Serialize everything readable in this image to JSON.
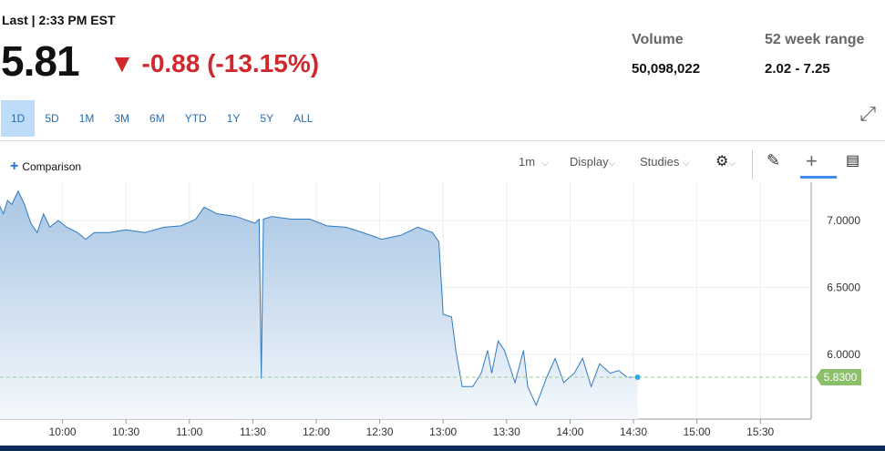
{
  "header": {
    "last_label": "Last | 2:33 PM EST",
    "price": "5.81",
    "change": "-0.88 (-13.15%)",
    "direction_icon": "triangle-down-icon"
  },
  "stats": {
    "volume_label": "Volume",
    "volume": "50,098,022",
    "range_label": "52 week range",
    "range": "2.02 - 7.25"
  },
  "ranges": [
    "1D",
    "5D",
    "1M",
    "3M",
    "6M",
    "YTD",
    "1Y",
    "5Y",
    "ALL"
  ],
  "active_range": "1D",
  "toolbar": {
    "comparison": "Comparison",
    "interval": "1m",
    "display": "Display",
    "studies": "Studies"
  },
  "colors": {
    "line": "#2f7bc0",
    "fill": "#a9c6e4",
    "down": "#d0282c",
    "last_badge": "#8bbf6a"
  },
  "chart_data": {
    "type": "area",
    "x_ticks": [
      "10:00",
      "10:30",
      "11:00",
      "11:30",
      "12:00",
      "12:30",
      "13:00",
      "13:30",
      "14:00",
      "14:30",
      "15:00",
      "15:30"
    ],
    "y_ticks": [
      "6.0000",
      "6.5000",
      "7.0000"
    ],
    "xlim": [
      "09:30",
      "16:00"
    ],
    "ylim": [
      5.45,
      7.33
    ],
    "grid": true,
    "last_value_label": "5.8300",
    "last_value": 5.83,
    "points": [
      [
        "09:30",
        7.12
      ],
      [
        "09:32",
        7.05
      ],
      [
        "09:34",
        7.15
      ],
      [
        "09:36",
        7.12
      ],
      [
        "09:39",
        7.22
      ],
      [
        "09:42",
        7.12
      ],
      [
        "09:45",
        6.98
      ],
      [
        "09:48",
        6.91
      ],
      [
        "09:51",
        7.05
      ],
      [
        "09:54",
        6.95
      ],
      [
        "09:58",
        7.0
      ],
      [
        "10:02",
        6.95
      ],
      [
        "10:07",
        6.91
      ],
      [
        "10:11",
        6.86
      ],
      [
        "10:15",
        6.91
      ],
      [
        "10:22",
        6.91
      ],
      [
        "10:30",
        6.93
      ],
      [
        "10:39",
        6.91
      ],
      [
        "10:48",
        6.95
      ],
      [
        "10:56",
        6.96
      ],
      [
        "11:03",
        7.01
      ],
      [
        "11:07",
        7.1
      ],
      [
        "11:13",
        7.05
      ],
      [
        "11:22",
        7.03
      ],
      [
        "11:31",
        6.98
      ],
      [
        "11:33",
        7.01
      ],
      [
        "11:34",
        5.82
      ],
      [
        "11:35",
        7.01
      ],
      [
        "11:39",
        7.03
      ],
      [
        "11:48",
        7.01
      ],
      [
        "11:57",
        7.01
      ],
      [
        "12:05",
        6.96
      ],
      [
        "12:14",
        6.95
      ],
      [
        "12:22",
        6.91
      ],
      [
        "12:31",
        6.86
      ],
      [
        "12:40",
        6.89
      ],
      [
        "12:48",
        6.95
      ],
      [
        "12:55",
        6.91
      ],
      [
        "12:58",
        6.84
      ],
      [
        "13:00",
        6.3
      ],
      [
        "13:04",
        6.28
      ],
      [
        "13:06",
        6.03
      ],
      [
        "13:09",
        5.76
      ],
      [
        "13:14",
        5.76
      ],
      [
        "13:18",
        5.86
      ],
      [
        "13:21",
        6.03
      ],
      [
        "13:23",
        5.86
      ],
      [
        "13:26",
        6.1
      ],
      [
        "13:29",
        6.03
      ],
      [
        "13:34",
        5.79
      ],
      [
        "13:38",
        6.03
      ],
      [
        "13:40",
        5.76
      ],
      [
        "13:44",
        5.62
      ],
      [
        "13:49",
        5.83
      ],
      [
        "13:53",
        5.97
      ],
      [
        "13:57",
        5.79
      ],
      [
        "14:02",
        5.86
      ],
      [
        "14:06",
        5.97
      ],
      [
        "14:10",
        5.76
      ],
      [
        "14:14",
        5.93
      ],
      [
        "14:19",
        5.86
      ],
      [
        "14:23",
        5.88
      ],
      [
        "14:27",
        5.83
      ],
      [
        "14:32",
        5.83
      ]
    ]
  }
}
